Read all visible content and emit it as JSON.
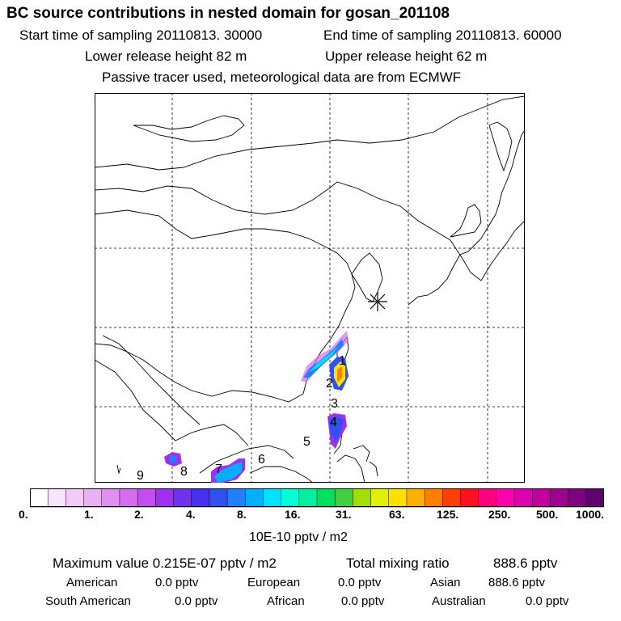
{
  "header": {
    "title": "BC  source contributions in nested domain for gosan_201108",
    "start_time": "Start time of sampling 20110813. 30000",
    "end_time": "End time of sampling 20110813. 60000",
    "lower_height": "Lower release height   82 m",
    "upper_height": "Upper release height   62 m",
    "tracer_note": "Passive tracer used, meteorological data are from ECMWF"
  },
  "map": {
    "station_marker": "gosan-star",
    "region_labels": [
      "1",
      "2",
      "3",
      "4",
      "5",
      "6",
      "7",
      "8",
      "9"
    ]
  },
  "colorbar": {
    "colors": [
      "#ffffff",
      "#f7e6fb",
      "#f0ccf7",
      "#e9b0f4",
      "#e090f0",
      "#d66cf0",
      "#c44cf0",
      "#a030f0",
      "#7030f0",
      "#4830f0",
      "#3050f0",
      "#2080ff",
      "#00b0ff",
      "#00e0ff",
      "#00ffd8",
      "#00f0a0",
      "#00e060",
      "#40d040",
      "#a0e000",
      "#e0f000",
      "#ffe000",
      "#ffb000",
      "#ff8000",
      "#ff4000",
      "#ff1020",
      "#ff0080",
      "#ff00b0",
      "#e000b0",
      "#c000a0",
      "#a00090",
      "#800080",
      "#600070"
    ],
    "tick_labels": [
      "0.",
      "1.",
      "2.",
      "4.",
      "8.",
      "16.",
      "31.",
      "63.",
      "125.",
      "250.",
      "500.",
      "1000."
    ],
    "units": "10E-10 pptv / m2"
  },
  "stats": {
    "max_label": "Maximum value  0.215E-07 pptv / m2",
    "total_label": "Total mixing ratio",
    "total_value": "888.6 pptv",
    "american_label": "American",
    "american_value": "0.0 pptv",
    "european_label": "European",
    "european_value": "0.0 pptv",
    "asian_label": "Asian",
    "asian_value": "888.6 pptv",
    "south_american_label": "South American",
    "south_american_value": "0.0 pptv",
    "african_label": "African",
    "african_value": "0.0 pptv",
    "australian_label": "Australian",
    "australian_value": "0.0 pptv"
  }
}
